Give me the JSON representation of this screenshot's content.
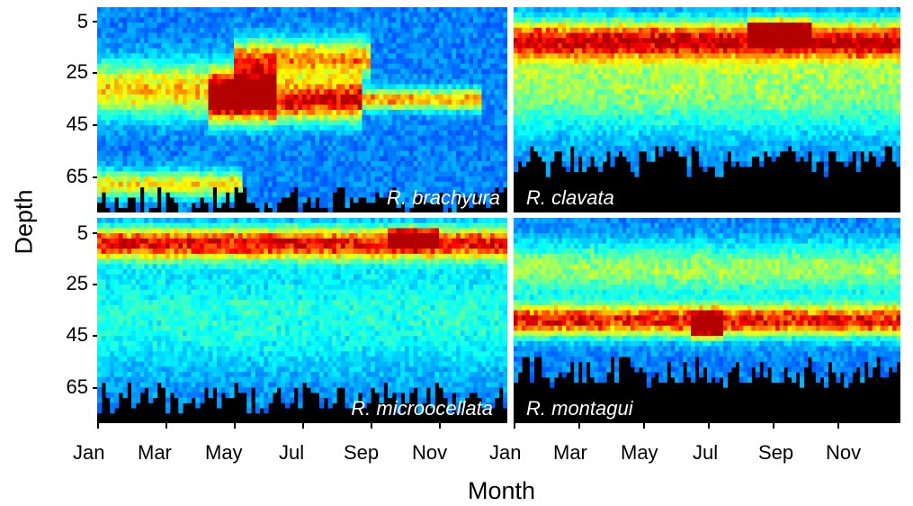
{
  "chart_data": {
    "type": "heatmap",
    "xlabel": "Month",
    "ylabel": "Depth",
    "x_ticks": [
      "Jan",
      "Mar",
      "May",
      "Jul",
      "Sep",
      "Nov"
    ],
    "x_ticks_left_extra": "Jan",
    "y_ticks": [
      "5",
      "25",
      "45",
      "65"
    ],
    "ylim": [
      0,
      80
    ],
    "colormap": "jet",
    "colors": {
      "background": "#000000",
      "low": "#2a1fd6",
      "mid": "#19d9d0",
      "high": "#ff2a00"
    },
    "panels": [
      {
        "name": "R. brachyura",
        "top_depth": 75,
        "bands": [
          {
            "start_month": 0.0,
            "end_month": 5.2,
            "center_depth": 32,
            "width": 10,
            "intensity": 0.55
          },
          {
            "start_month": 3.2,
            "end_month": 7.8,
            "center_depth": 36,
            "width": 8,
            "intensity": 0.85
          },
          {
            "start_month": 7.8,
            "end_month": 11.2,
            "center_depth": 36,
            "width": 4,
            "intensity": 0.6
          },
          {
            "start_month": 4.0,
            "end_month": 8.0,
            "center_depth": 20,
            "width": 7,
            "intensity": 0.6
          },
          {
            "start_month": 0.0,
            "end_month": 4.3,
            "center_depth": 69,
            "width": 5,
            "intensity": 0.5
          }
        ]
      },
      {
        "name": "R. clavata",
        "top_depth": 60,
        "bands": [
          {
            "start_month": 0.0,
            "end_month": 12.0,
            "center_depth": 13,
            "width": 7,
            "intensity": 0.75
          },
          {
            "start_month": 0.0,
            "end_month": 12.0,
            "center_depth": 30,
            "width": 18,
            "intensity": 0.35
          },
          {
            "start_month": 7.2,
            "end_month": 9.2,
            "center_depth": 10,
            "width": 4,
            "intensity": 0.95
          }
        ]
      },
      {
        "name": "R. microocellata",
        "top_depth": 70,
        "bands": [
          {
            "start_month": 0.0,
            "end_month": 12.0,
            "center_depth": 10,
            "width": 6,
            "intensity": 0.78
          },
          {
            "start_month": 0.0,
            "end_month": 12.0,
            "center_depth": 38,
            "width": 22,
            "intensity": 0.2
          },
          {
            "start_month": 8.5,
            "end_month": 10.0,
            "center_depth": 8,
            "width": 3,
            "intensity": 0.95
          }
        ]
      },
      {
        "name": "R. montagui",
        "top_depth": 60,
        "bands": [
          {
            "start_month": 0.0,
            "end_month": 12.0,
            "center_depth": 40,
            "width": 6,
            "intensity": 0.8
          },
          {
            "start_month": 0.0,
            "end_month": 12.0,
            "center_depth": 20,
            "width": 10,
            "intensity": 0.35
          },
          {
            "start_month": 5.5,
            "end_month": 6.5,
            "center_depth": 42,
            "width": 4,
            "intensity": 0.95
          }
        ]
      }
    ]
  }
}
